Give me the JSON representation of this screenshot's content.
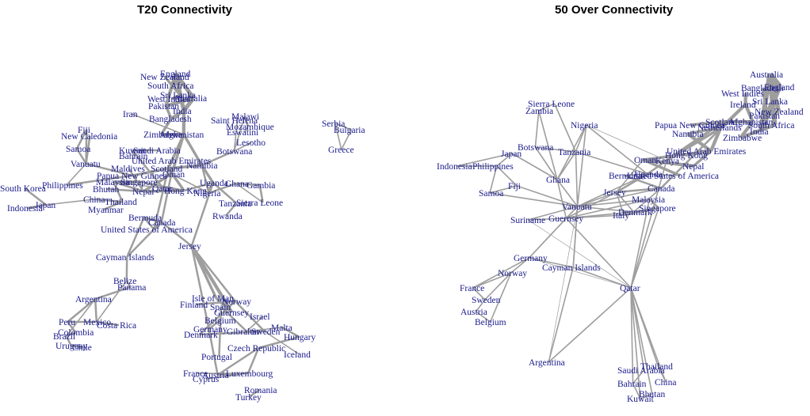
{
  "panels": [
    {
      "id": "t20",
      "title": "T20 Connectivity",
      "nodes": [
        {
          "id": "England",
          "label": "England"
        },
        {
          "id": "NewZealand",
          "label": "New Zealand"
        },
        {
          "id": "SouthAfrica",
          "label": "South Africa"
        },
        {
          "id": "SriLanka",
          "label": "Sri Lanka"
        },
        {
          "id": "WestIndies",
          "label": "West Indies"
        },
        {
          "id": "Australia",
          "label": "Australia"
        },
        {
          "id": "Pakistan",
          "label": "Pakistan"
        },
        {
          "id": "India",
          "label": "India"
        },
        {
          "id": "Bangladesh",
          "label": "Bangladesh"
        },
        {
          "id": "Iran",
          "label": "Iran"
        },
        {
          "id": "Zimbabwe",
          "label": "Zimbabwe"
        },
        {
          "id": "Afghanistan",
          "label": "Afghanistan"
        },
        {
          "id": "Fiji",
          "label": "Fiji"
        },
        {
          "id": "NewCaledonia",
          "label": "New Caledonia"
        },
        {
          "id": "Samoa",
          "label": "Samoa"
        },
        {
          "id": "Kuwait",
          "label": "Kuwait"
        },
        {
          "id": "SaudiArabia",
          "label": "Saudi Arabia"
        },
        {
          "id": "Bahrain",
          "label": "Bahrain"
        },
        {
          "id": "UAE",
          "label": "United Arab Emirates"
        },
        {
          "id": "Vanuatu",
          "label": "Vanuatu"
        },
        {
          "id": "Maldives",
          "label": "Maldives"
        },
        {
          "id": "Scotland",
          "label": "Scotland"
        },
        {
          "id": "Namibia",
          "label": "Namibia"
        },
        {
          "id": "PNG",
          "label": "Papua New Guinea"
        },
        {
          "id": "Malaysia",
          "label": "Malaysia"
        },
        {
          "id": "Singapore",
          "label": "Singapore"
        },
        {
          "id": "Oman",
          "label": "Oman"
        },
        {
          "id": "Philippines",
          "label": "Philippines"
        },
        {
          "id": "SouthKorea",
          "label": "South Korea"
        },
        {
          "id": "Bhutan",
          "label": "Bhutan"
        },
        {
          "id": "Nepal",
          "label": "Nepal"
        },
        {
          "id": "HongKong",
          "label": "Hong Kong"
        },
        {
          "id": "Qatar",
          "label": "Qatar"
        },
        {
          "id": "Nigeria",
          "label": "Nigeria"
        },
        {
          "id": "Indonesia",
          "label": "Indonesia"
        },
        {
          "id": "Japan",
          "label": "Japan"
        },
        {
          "id": "China",
          "label": "China"
        },
        {
          "id": "Thailand",
          "label": "Thailand"
        },
        {
          "id": "Myanmar",
          "label": "Myanmar"
        },
        {
          "id": "Bermuda",
          "label": "Bermuda"
        },
        {
          "id": "Canada",
          "label": "Canada"
        },
        {
          "id": "USA",
          "label": "United States of America"
        },
        {
          "id": "Uganda",
          "label": "Uganda"
        },
        {
          "id": "Ghana",
          "label": "Ghana"
        },
        {
          "id": "Gambia",
          "label": "Gambia"
        },
        {
          "id": "Tanzania",
          "label": "Tanzania"
        },
        {
          "id": "SierraLeone",
          "label": "Sierra Leone"
        },
        {
          "id": "Rwanda",
          "label": "Rwanda"
        },
        {
          "id": "Malawi",
          "label": "Malawi"
        },
        {
          "id": "SaintHelena",
          "label": "Saint Helena"
        },
        {
          "id": "Mozambique",
          "label": "Mozambique"
        },
        {
          "id": "Eswatini",
          "label": "Eswatini"
        },
        {
          "id": "Lesotho",
          "label": "Lesotho"
        },
        {
          "id": "Botswana",
          "label": "Botswana"
        },
        {
          "id": "Serbia",
          "label": "Serbia"
        },
        {
          "id": "Bulgaria",
          "label": "Bulgaria"
        },
        {
          "id": "Greece",
          "label": "Greece"
        },
        {
          "id": "CaymanIslands",
          "label": "Cayman Islands"
        },
        {
          "id": "Jersey",
          "label": "Jersey"
        },
        {
          "id": "Belize",
          "label": "Belize"
        },
        {
          "id": "Panama",
          "label": "Panama"
        },
        {
          "id": "Argentina",
          "label": "Argentina"
        },
        {
          "id": "Peru",
          "label": "Peru"
        },
        {
          "id": "Mexico",
          "label": "Mexico"
        },
        {
          "id": "CostaRica",
          "label": "Costa Rica"
        },
        {
          "id": "Colombia",
          "label": "Colombia"
        },
        {
          "id": "Brazil",
          "label": "Brazil"
        },
        {
          "id": "Uruguay",
          "label": "Uruguay"
        },
        {
          "id": "Chile",
          "label": "Chile"
        },
        {
          "id": "IsleOfMan",
          "label": "Isle of Man"
        },
        {
          "id": "Norway",
          "label": "Norway"
        },
        {
          "id": "Finland",
          "label": "Finland"
        },
        {
          "id": "Spain",
          "label": "Spain"
        },
        {
          "id": "Guernsey",
          "label": "Guernsey"
        },
        {
          "id": "Israel",
          "label": "Israel"
        },
        {
          "id": "Belgium",
          "label": "Belgium"
        },
        {
          "id": "Germany",
          "label": "Germany"
        },
        {
          "id": "Denmark",
          "label": "Denmark"
        },
        {
          "id": "Gibraltar",
          "label": "Gibraltar"
        },
        {
          "id": "Sweden",
          "label": "Sweden"
        },
        {
          "id": "Malta",
          "label": "Malta"
        },
        {
          "id": "Hungary",
          "label": "Hungary"
        },
        {
          "id": "CzechRepublic",
          "label": "Czech Republic"
        },
        {
          "id": "Iceland",
          "label": "Iceland"
        },
        {
          "id": "Portugal",
          "label": "Portugal"
        },
        {
          "id": "France",
          "label": "France"
        },
        {
          "id": "Austria",
          "label": "Austria"
        },
        {
          "id": "Luxembourg",
          "label": "Luxembourg"
        },
        {
          "id": "Cyprus",
          "label": "Cyprus"
        },
        {
          "id": "Romania",
          "label": "Romania"
        },
        {
          "id": "Turkey",
          "label": "Turkey"
        }
      ]
    },
    {
      "id": "odi",
      "title": "50 Over Connectivity",
      "nodes": [
        {
          "id": "Australia",
          "label": "Australia"
        },
        {
          "id": "England",
          "label": "England"
        },
        {
          "id": "Bangladesh",
          "label": "Bangladesh"
        },
        {
          "id": "WestIndies",
          "label": "West Indies"
        },
        {
          "id": "SriLanka",
          "label": "Sri Lanka"
        },
        {
          "id": "Ireland",
          "label": "Ireland"
        },
        {
          "id": "NewZealand",
          "label": "New Zealand"
        },
        {
          "id": "Pakistan",
          "label": "Pakistan"
        },
        {
          "id": "Afghanistan",
          "label": "Afghanistan"
        },
        {
          "id": "SouthAfrica",
          "label": "South Africa"
        },
        {
          "id": "India",
          "label": "India"
        },
        {
          "id": "Zimbabwe",
          "label": "Zimbabwe"
        },
        {
          "id": "PNG",
          "label": "Papua New Guinea"
        },
        {
          "id": "Scotland",
          "label": "Scotland"
        },
        {
          "id": "Netherlands",
          "label": "Netherlands"
        },
        {
          "id": "Namibia",
          "label": "Namibia"
        },
        {
          "id": "UAE",
          "label": "United Arab Emirates"
        },
        {
          "id": "HongKong",
          "label": "Hong Kong"
        },
        {
          "id": "Oman",
          "label": "Oman"
        },
        {
          "id": "Kenya",
          "label": "Kenya"
        },
        {
          "id": "Nepal",
          "label": "Nepal"
        },
        {
          "id": "Bermuda",
          "label": "Bermuda"
        },
        {
          "id": "Uganda",
          "label": "Uganda"
        },
        {
          "id": "USA",
          "label": "United States of America"
        },
        {
          "id": "Canada",
          "label": "Canada"
        },
        {
          "id": "Jersey",
          "label": "Jersey"
        },
        {
          "id": "Malaysia",
          "label": "Malaysia"
        },
        {
          "id": "Denmark",
          "label": "Denmark"
        },
        {
          "id": "Singapore",
          "label": "Singapore"
        },
        {
          "id": "Italy",
          "label": "Italy"
        },
        {
          "id": "SierraLeone",
          "label": "Sierra Leone"
        },
        {
          "id": "Zambia",
          "label": "Zambia"
        },
        {
          "id": "Nigeria",
          "label": "Nigeria"
        },
        {
          "id": "Botswana",
          "label": "Botswana"
        },
        {
          "id": "Tanzania",
          "label": "Tanzania"
        },
        {
          "id": "Japan",
          "label": "Japan"
        },
        {
          "id": "Indonesia",
          "label": "Indonesia"
        },
        {
          "id": "Philippines",
          "label": "Philippines"
        },
        {
          "id": "Fiji",
          "label": "Fiji"
        },
        {
          "id": "Samoa",
          "label": "Samoa"
        },
        {
          "id": "Ghana",
          "label": "Ghana"
        },
        {
          "id": "Vanuatu",
          "label": "Vanuatu"
        },
        {
          "id": "Suriname",
          "label": "Suriname"
        },
        {
          "id": "Guernsey",
          "label": "Guernsey"
        },
        {
          "id": "Germany",
          "label": "Germany"
        },
        {
          "id": "Norway",
          "label": "Norway"
        },
        {
          "id": "CaymanIslands",
          "label": "Cayman Islands"
        },
        {
          "id": "France",
          "label": "France"
        },
        {
          "id": "Sweden",
          "label": "Sweden"
        },
        {
          "id": "Austria",
          "label": "Austria"
        },
        {
          "id": "Belgium",
          "label": "Belgium"
        },
        {
          "id": "Qatar",
          "label": "Qatar"
        },
        {
          "id": "Argentina",
          "label": "Argentina"
        },
        {
          "id": "Thailand",
          "label": "Thailand"
        },
        {
          "id": "SaudiArabia",
          "label": "Saudi Arabia"
        },
        {
          "id": "Bahrain",
          "label": "Bahrain"
        },
        {
          "id": "China",
          "label": "China"
        },
        {
          "id": "Bhutan",
          "label": "Bhutan"
        },
        {
          "id": "Kuwait",
          "label": "Kuwait"
        }
      ]
    }
  ],
  "colors": {
    "label": "#1a1a8c",
    "edge": "#9e9e9e",
    "title": "#000000"
  }
}
